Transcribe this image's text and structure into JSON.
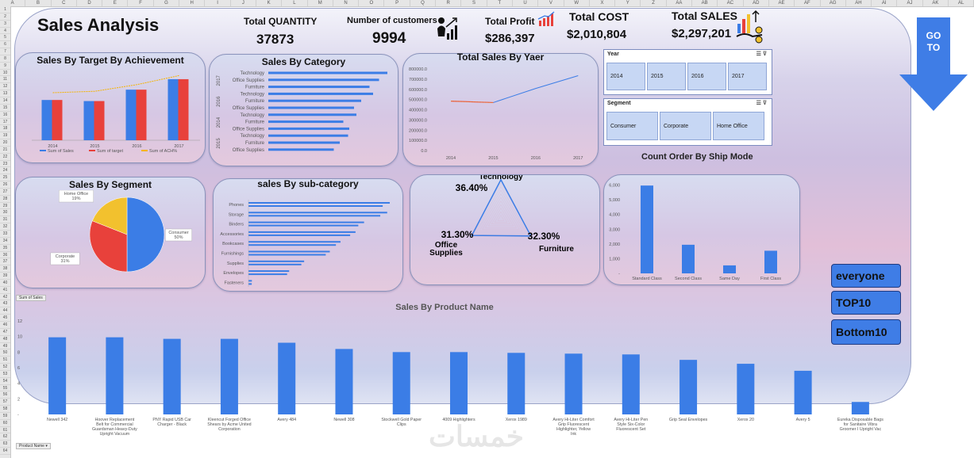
{
  "columns": [
    "A",
    "B",
    "C",
    "D",
    "E",
    "F",
    "G",
    "H",
    "I",
    "J",
    "K",
    "L",
    "M",
    "N",
    "O",
    "P",
    "Q",
    "R",
    "S",
    "T",
    "U",
    "V",
    "W",
    "X",
    "Y",
    "Z",
    "AA",
    "AB",
    "AC",
    "AD",
    "AE",
    "AF",
    "AG",
    "AH",
    "AI",
    "AJ",
    "AK",
    "AL"
  ],
  "title": "Sales Analysis",
  "kpis": [
    {
      "label": "Total QUANTITY",
      "value": "37873"
    },
    {
      "label": "Number of customers",
      "value": "9994"
    },
    {
      "label": "Total Profit",
      "value": "$286,397"
    },
    {
      "label": "Total COST",
      "value": "$2,010,804"
    },
    {
      "label": "Total SALES",
      "value": "$2,297,201"
    }
  ],
  "colors": {
    "blue": "#3b7de6",
    "red": "#e8413b",
    "orange": "#f5b400",
    "gold": "#f2c12e"
  },
  "target_chart": {
    "title": "Sales By Target By Achievement",
    "type": "bar",
    "categories": [
      "2014",
      "2015",
      "2016",
      "2017"
    ],
    "series": [
      {
        "name": "Sum of Sales",
        "values": [
          484000,
          471000,
          608000,
          734000
        ]
      },
      {
        "name": "Sum of target",
        "values": [
          484000,
          471000,
          608000,
          734000
        ]
      },
      {
        "name": "Sum of ACH%",
        "values": [
          100,
          103,
          117,
          136
        ]
      }
    ],
    "legend": [
      "Sum of Sales",
      "Sum of target",
      "Sum of ACH%"
    ]
  },
  "category_chart": {
    "title": "Sales By Category",
    "type": "bar",
    "groups": [
      "2017",
      "2016",
      "2014",
      "2015"
    ],
    "rows": [
      {
        "label": "Technology",
        "value": 100
      },
      {
        "label": "Office Supplies",
        "value": 93
      },
      {
        "label": "Furniture",
        "value": 85
      },
      {
        "label": "Technology",
        "value": 88
      },
      {
        "label": "Furniture",
        "value": 78
      },
      {
        "label": "Office Supplies",
        "value": 72
      },
      {
        "label": "Technology",
        "value": 74
      },
      {
        "label": "Furniture",
        "value": 63
      },
      {
        "label": "Office Supplies",
        "value": 68
      },
      {
        "label": "Technology",
        "value": 67
      },
      {
        "label": "Furniture",
        "value": 60
      },
      {
        "label": "Office Supplies",
        "value": 55
      }
    ]
  },
  "year_chart": {
    "title": "Total Sales By Yaer",
    "type": "line",
    "categories": [
      "2014",
      "2015",
      "2016",
      "2017"
    ],
    "yticks": [
      "0.0",
      "100000.0",
      "200000.0",
      "300000.0",
      "400000.0",
      "500000.0",
      "600000.0",
      "700000.0",
      "800000.0"
    ],
    "values": [
      484247,
      470533,
      608473,
      733947
    ],
    "ylim": [
      0,
      800000
    ]
  },
  "slicers": [
    {
      "title": "Year",
      "items": [
        "2014",
        "2015",
        "2016",
        "2017"
      ]
    },
    {
      "title": "Segment",
      "items": [
        "Consumer",
        "Corporate",
        "Home Office"
      ]
    }
  ],
  "goto_label": [
    "GO",
    "TO"
  ],
  "segment_chart": {
    "title": "Sales By Segment",
    "type": "pie",
    "slices": [
      {
        "name": "Consumer",
        "value": 50,
        "label": "Consumer\n50%"
      },
      {
        "name": "Corporate",
        "value": 31,
        "label": "Corporate\n31%"
      },
      {
        "name": "Home Office",
        "value": 19,
        "label": "Home Office\n19%"
      }
    ]
  },
  "subcat_chart": {
    "title": "sales By sub-category",
    "type": "bar",
    "rows": [
      {
        "label": "Phones",
        "value": 330000
      },
      {
        "label": "Storage",
        "value": 324000
      },
      {
        "label": "Binders",
        "value": 270000
      },
      {
        "label": "Accessories",
        "value": 250000
      },
      {
        "label": "Bookcases",
        "value": 215000
      },
      {
        "label": "Furnishings",
        "value": 190000
      },
      {
        "label": "Supplies",
        "value": 130000
      },
      {
        "label": "Envelopes",
        "value": 95000
      },
      {
        "label": "Fasteners",
        "value": 8000
      }
    ]
  },
  "radar_chart": {
    "type": "radar",
    "axes": [
      {
        "name": "Technology",
        "value": 36.4,
        "pct": "36.40%"
      },
      {
        "name": "Furniture",
        "value": 32.3,
        "pct": "32.30%"
      },
      {
        "name": "Office Supplies",
        "value": 31.3,
        "pct": "31.30%"
      }
    ],
    "office_label_lines": [
      "Office",
      "Supplies"
    ]
  },
  "shipmode_chart": {
    "title": "Count Order By Ship Mode",
    "type": "bar",
    "categories": [
      "Standard Class",
      "Second Class",
      "Same Day",
      "First Class"
    ],
    "values": [
      5968,
      1945,
      543,
      1538
    ],
    "yticks": [
      "-",
      "1,000",
      "2,000",
      "3,000",
      "4,000",
      "5,000",
      "6,000",
      "7,000"
    ],
    "ylim": [
      0,
      7000
    ]
  },
  "selectors": [
    "everyone",
    "TOP10",
    "Bottom10"
  ],
  "product_chart": {
    "title": "Sales By Product Name",
    "type": "bar",
    "field_button": "Sum of Sales",
    "axis_button": "Product Name",
    "yticks": [
      "-",
      "2",
      "4",
      "6",
      "8",
      "10",
      "12"
    ],
    "ylim": [
      0,
      12
    ],
    "categories": [
      "Newell 342",
      "Hoover Replacement Belt for Commercial Guardsman Heavy-Duty Upright Vacuum",
      "PNY Rapid USB Car Charger - Black",
      "Kleencut Forged Office Shears by Acme United Corporation",
      "Avery 484",
      "Newell 308",
      "Stockwell Gold Paper Clips",
      "4009 Highlighters",
      "Xerox 1989",
      "Avery Hi-Liter Comfort Grip Fluorescent Highlighter, Yellow Ink",
      "Avery Hi-Liter Pen Style Six-Color Fluorescent Set",
      "Grip Seal Envelopes",
      "Xerox 20",
      "Avery 5",
      "Eureka Disposable Bags for Sanitaire Vibra Groomer I Upright Vac"
    ],
    "values": [
      9.9,
      9.9,
      9.7,
      9.7,
      9.2,
      8.4,
      8.0,
      8.0,
      7.9,
      7.8,
      7.7,
      7.0,
      6.5,
      5.6,
      1.6
    ]
  },
  "watermark": "خمسات"
}
